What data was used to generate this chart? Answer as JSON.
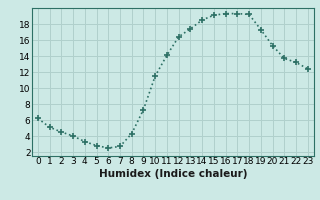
{
  "xlabel": "Humidex (Indice chaleur)",
  "x": [
    0,
    1,
    2,
    3,
    4,
    5,
    6,
    7,
    8,
    9,
    10,
    11,
    12,
    13,
    14,
    15,
    16,
    17,
    18,
    19,
    20,
    21,
    22,
    23
  ],
  "y": [
    6.2,
    5.1,
    4.5,
    4.0,
    3.3,
    2.8,
    2.5,
    2.7,
    4.3,
    7.3,
    11.5,
    14.1,
    16.4,
    17.4,
    18.5,
    19.1,
    19.3,
    19.3,
    19.2,
    17.3,
    15.3,
    13.7,
    13.2,
    12.4
  ],
  "line_color": "#2d7065",
  "marker": "+",
  "marker_size": 4,
  "bg_color": "#cce9e5",
  "grid_color": "#b0d0cc",
  "ylim": [
    1.5,
    20.0
  ],
  "xlim": [
    -0.5,
    23.5
  ],
  "yticks": [
    2,
    4,
    6,
    8,
    10,
    12,
    14,
    16,
    18
  ],
  "xticks": [
    0,
    1,
    2,
    3,
    4,
    5,
    6,
    7,
    8,
    9,
    10,
    11,
    12,
    13,
    14,
    15,
    16,
    17,
    18,
    19,
    20,
    21,
    22,
    23
  ],
  "tick_fontsize": 6.5,
  "xlabel_fontsize": 7.5
}
